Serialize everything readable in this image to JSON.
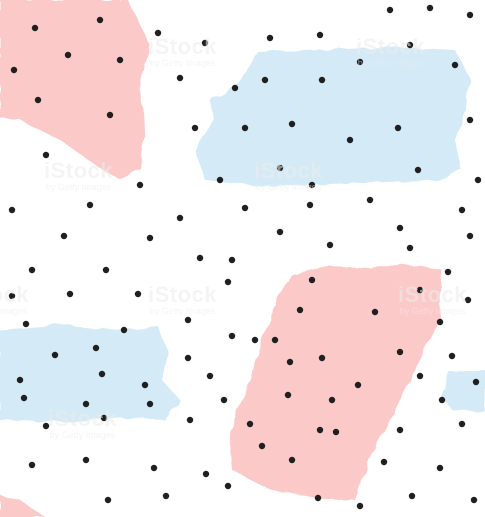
{
  "pattern": {
    "background_color": "#ffffff",
    "pink_color": "#fcc9c9",
    "blue_color": "#d4ebf7",
    "dot_color": "#1f1f1f"
  },
  "watermark": {
    "brand": "iStock",
    "credit": "by Getty Images"
  }
}
